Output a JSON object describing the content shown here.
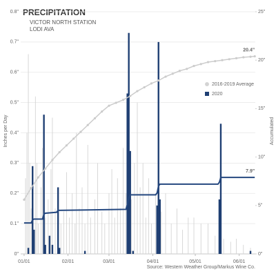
{
  "chart_data": {
    "type": "bar",
    "title": "PRECIPITATION",
    "subtitle": [
      "VICTOR NORTH STATION",
      "LODI AVA"
    ],
    "y_label": "Inches per Day",
    "y2_label": "Accumulated",
    "source": "Source: Western Weather Group/Markus Wine Co.",
    "grid": true,
    "legend_position": "right",
    "xlim": [
      -2.4,
      163.4
    ],
    "xticks": [
      {
        "value": 0,
        "label": "01/01"
      },
      {
        "value": 31,
        "label": "02/01"
      },
      {
        "value": 60,
        "label": "03/01"
      },
      {
        "value": 91,
        "label": "04/01"
      },
      {
        "value": 121,
        "label": "05/01"
      },
      {
        "value": 152,
        "label": "06/01"
      }
    ],
    "ylim": [
      0,
      0.8
    ],
    "yticks": [
      {
        "value": 0,
        "label": "0\""
      },
      {
        "value": 0.1,
        "label": "0.1\""
      },
      {
        "value": 0.2,
        "label": "0.2\""
      },
      {
        "value": 0.3,
        "label": "0.3\""
      },
      {
        "value": 0.4,
        "label": "0.4\""
      },
      {
        "value": 0.5,
        "label": "0.5\""
      },
      {
        "value": 0.6,
        "label": "0.6\""
      },
      {
        "value": 0.7,
        "label": "0.7\""
      },
      {
        "value": 0.8,
        "label": "0.8\""
      }
    ],
    "y2lim": [
      0,
      25
    ],
    "y2ticks": [
      {
        "value": 0,
        "label": "0\""
      },
      {
        "value": 5,
        "label": "5\""
      },
      {
        "value": 10,
        "label": "10\""
      },
      {
        "value": 15,
        "label": "15\""
      },
      {
        "value": 20,
        "label": "20\""
      },
      {
        "value": 25,
        "label": "25\""
      }
    ],
    "series": [
      {
        "name": "2016-2019 Average",
        "type": "bar",
        "color": "#d4d4d4",
        "x": [
          1,
          2,
          3,
          4,
          5,
          6,
          8,
          9,
          10,
          12,
          13,
          15,
          17,
          19,
          20,
          22,
          24,
          26,
          28,
          30,
          32,
          34,
          36,
          37,
          39,
          41,
          43,
          45,
          47,
          50,
          52,
          55,
          57,
          60,
          62,
          64,
          66,
          68,
          70,
          72,
          76,
          78,
          80,
          82,
          84,
          86,
          88,
          90,
          93,
          97,
          100,
          104,
          108,
          112,
          116,
          120,
          125,
          130,
          135,
          141,
          146,
          150,
          155,
          160
        ],
        "values": [
          0.25,
          0.4,
          0.66,
          0.3,
          0.15,
          0.2,
          0.52,
          0.3,
          0.1,
          0.22,
          0.35,
          0.12,
          0.18,
          0.28,
          0.45,
          0.15,
          0.2,
          0.1,
          0.14,
          0.27,
          0.12,
          0.2,
          0.1,
          0.4,
          0.15,
          0.22,
          0.1,
          0.36,
          0.12,
          0.18,
          0.3,
          0.14,
          0.1,
          0.2,
          0.28,
          0.12,
          0.25,
          0.15,
          0.35,
          0.2,
          0.18,
          0.3,
          0.5,
          0.22,
          0.3,
          0.12,
          0.25,
          0.1,
          0.2,
          0.14,
          0.2,
          0.1,
          0.15,
          0.08,
          0.12,
          0.12,
          0.1,
          0.1,
          0.06,
          0.05,
          0.04,
          0.05,
          0.03,
          0.02
        ]
      },
      {
        "name": "2020",
        "type": "bar",
        "color": "#1f3f73",
        "x": [
          3,
          6,
          7,
          14,
          15,
          18,
          20,
          24,
          25,
          43,
          73,
          74,
          75,
          77,
          94,
          95,
          96,
          138,
          139,
          160
        ],
        "values": [
          0.02,
          0.29,
          0.08,
          0.46,
          0.03,
          0.06,
          0.03,
          0.22,
          0.02,
          0.01,
          0.53,
          0.73,
          0.34,
          0.01,
          0.16,
          0.7,
          0.18,
          0.18,
          0.43,
          0.01
        ]
      },
      {
        "type": "line",
        "axis": "y2",
        "color": "#cccccc",
        "markers": true,
        "end_label": "20.4\"",
        "x": [
          0,
          5,
          10,
          15,
          20,
          25,
          30,
          35,
          40,
          45,
          50,
          55,
          60,
          65,
          70,
          75,
          80,
          85,
          90,
          95,
          100,
          105,
          110,
          115,
          120,
          125,
          130,
          135,
          140,
          145,
          150,
          155,
          160,
          163
        ],
        "values": [
          5.6,
          6.8,
          7.9,
          8.8,
          9.7,
          10.5,
          11.2,
          11.9,
          12.6,
          13.3,
          14.0,
          14.7,
          15.3,
          15.6,
          15.9,
          16.3,
          16.8,
          17.2,
          17.6,
          17.9,
          18.3,
          18.6,
          18.9,
          19.1,
          19.4,
          19.6,
          19.8,
          19.9,
          20.0,
          20.1,
          20.2,
          20.3,
          20.35,
          20.4
        ]
      },
      {
        "type": "line",
        "axis": "y2",
        "color": "#24477f",
        "markers": false,
        "end_label": "7.9\"",
        "x": [
          0,
          5,
          6,
          7,
          13,
          14,
          15,
          23,
          24,
          72,
          73,
          74,
          75,
          93,
          94,
          95,
          96,
          137,
          138,
          139,
          163
        ],
        "values": [
          3.2,
          3.2,
          3.5,
          3.6,
          3.6,
          4.1,
          4.2,
          4.3,
          4.5,
          4.6,
          5.1,
          5.8,
          6.1,
          6.1,
          6.3,
          7.0,
          7.2,
          7.2,
          7.4,
          7.9,
          7.9
        ]
      }
    ]
  }
}
